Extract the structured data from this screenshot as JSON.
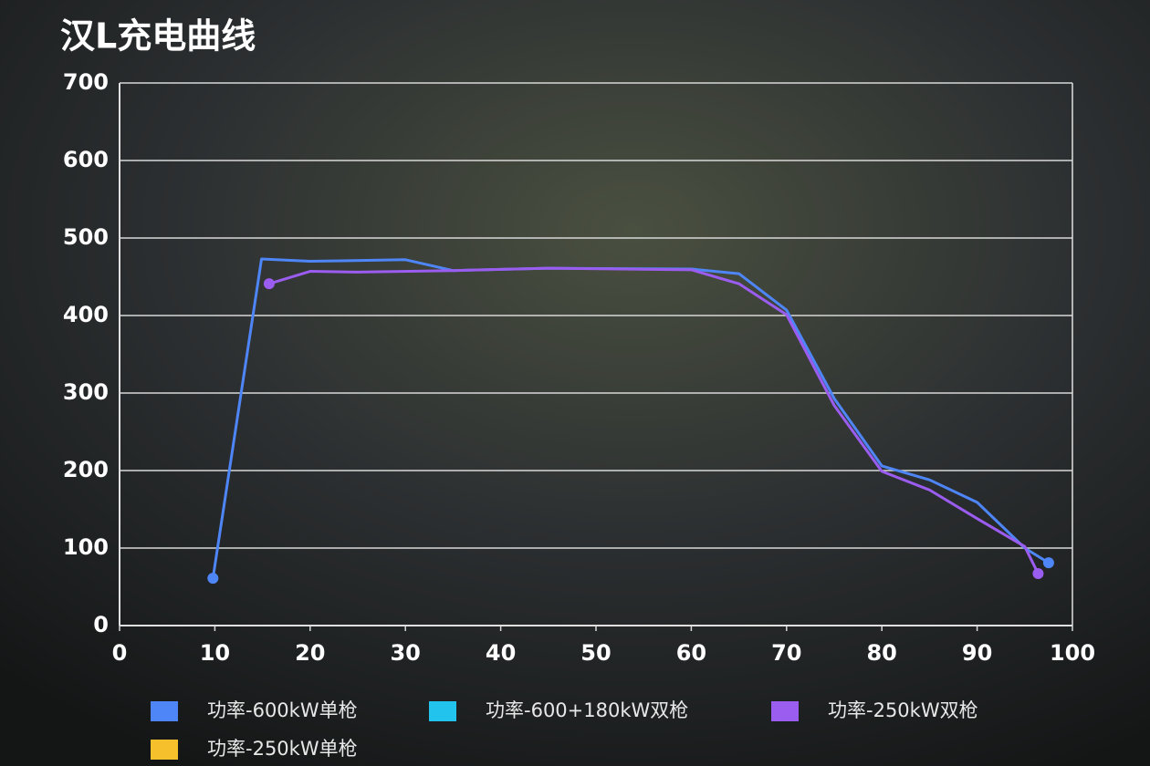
{
  "chart_data": {
    "type": "line",
    "title": "汉L充电曲线",
    "xlim": [
      0,
      100
    ],
    "xticks": [
      0,
      10,
      20,
      30,
      40,
      50,
      60,
      70,
      80,
      90,
      100
    ],
    "ylim": [
      0,
      700
    ],
    "yticks": [
      0,
      100,
      200,
      300,
      400,
      500,
      600,
      700
    ],
    "grid": true,
    "legend": "bottom",
    "series": [
      {
        "name": "功率-600kW单枪",
        "color": "#4f86f7",
        "x": [
          9.8,
          14.9,
          20,
          30,
          35,
          45,
          60,
          65,
          70,
          75,
          80,
          85,
          90,
          95,
          97.5
        ],
        "values": [
          61,
          473,
          470,
          472,
          458,
          461,
          460,
          454,
          407,
          293,
          206,
          188,
          159,
          100,
          81
        ]
      },
      {
        "name": "功率-600+180kW双枪",
        "color": "#22c4ee",
        "x": [],
        "values": []
      },
      {
        "name": "功率-250kW双枪",
        "color": "#9b5cf0",
        "x": [
          15.7,
          20,
          25,
          35,
          45,
          60,
          65,
          70,
          75,
          80,
          85,
          90,
          95,
          96.4
        ],
        "values": [
          441,
          457,
          456,
          458,
          461,
          459,
          441,
          401,
          284,
          199,
          175,
          138,
          102,
          67
        ]
      },
      {
        "name": "功率-250kW单枪",
        "color": "#f5c02c",
        "x": [],
        "values": []
      }
    ]
  }
}
